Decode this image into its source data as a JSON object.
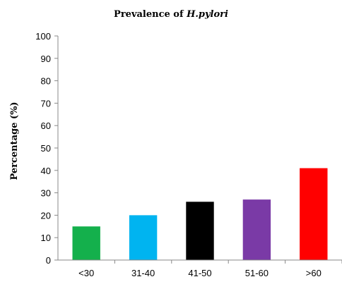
{
  "chart_data": {
    "type": "bar",
    "title": "Prevalence of ",
    "title_emphasis": "H.pylori",
    "xlabel": "",
    "ylabel": "Percentage (%)",
    "ylim": [
      0,
      100
    ],
    "ytick_step": 10,
    "grid": false,
    "categories": [
      "<30",
      "31-40",
      "41-50",
      "51-60",
      ">60"
    ],
    "values": [
      15,
      20,
      26,
      27,
      41
    ],
    "colors": [
      "#14b04c",
      "#00b4f0",
      "#000000",
      "#7a3aa6",
      "#ff0000"
    ]
  }
}
